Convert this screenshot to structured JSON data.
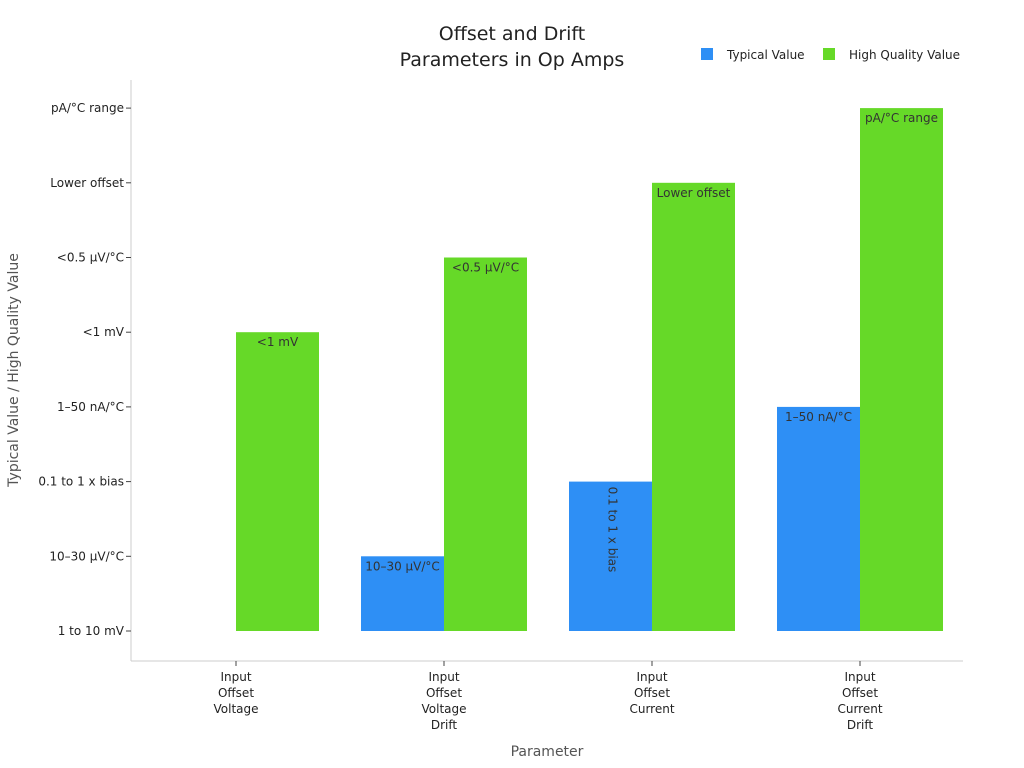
{
  "chart_data": {
    "type": "bar",
    "title": [
      "Offset and Drift",
      "Parameters in Op Amps"
    ],
    "xlabel": "Parameter",
    "ylabel": "Typical Value / High Quality Value",
    "categories": [
      [
        "Input",
        "Offset",
        "Voltage"
      ],
      [
        "Input",
        "Offset",
        "Voltage",
        "Drift"
      ],
      [
        "Input",
        "Offset",
        "Current"
      ],
      [
        "Input",
        "Offset",
        "Current",
        "Drift"
      ]
    ],
    "y_categories": [
      "1 to 10 mV",
      "10–30 µV/°C",
      "0.1 to 1 x bias",
      "1–50 nA/°C",
      "<1 mV",
      "<0.5 µV/°C",
      "Lower offset",
      "pA/°C range"
    ],
    "series": [
      {
        "name": "Typical Value",
        "color": "#2e8ff5",
        "values": [
          "1 to 10 mV",
          "10–30 µV/°C",
          "0.1 to 1 x bias",
          "1–50 nA/°C"
        ]
      },
      {
        "name": "High Quality Value",
        "color": "#66d928",
        "values": [
          "<1 mV",
          "<0.5 µV/°C",
          "Lower offset",
          "pA/°C range"
        ]
      }
    ],
    "legend_position": "top-right",
    "grid": false
  }
}
